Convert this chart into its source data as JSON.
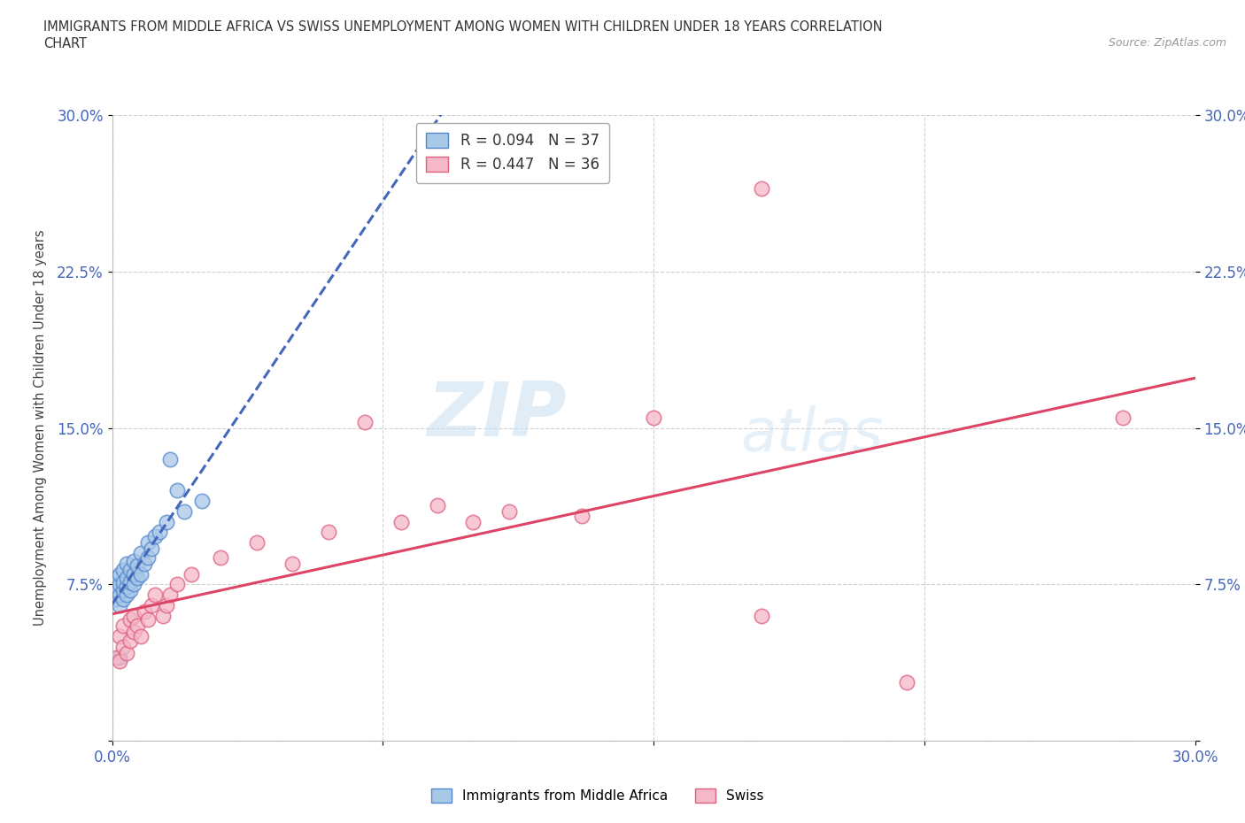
{
  "title": "IMMIGRANTS FROM MIDDLE AFRICA VS SWISS UNEMPLOYMENT AMONG WOMEN WITH CHILDREN UNDER 18 YEARS CORRELATION\nCHART",
  "source": "Source: ZipAtlas.com",
  "ylabel": "Unemployment Among Women with Children Under 18 years",
  "xlim": [
    0.0,
    0.3
  ],
  "ylim": [
    0.0,
    0.3
  ],
  "xticks": [
    0.0,
    0.075,
    0.15,
    0.225,
    0.3
  ],
  "yticks": [
    0.0,
    0.075,
    0.15,
    0.225,
    0.3
  ],
  "xticklabels": [
    "0.0%",
    "",
    "",
    "",
    "30.0%"
  ],
  "yticklabels": [
    "",
    "7.5%",
    "15.0%",
    "22.5%",
    "30.0%"
  ],
  "grid_color": "#cccccc",
  "background_color": "#ffffff",
  "watermark_zip": "ZIP",
  "watermark_atlas": "atlas",
  "blue_R": 0.094,
  "blue_N": 37,
  "pink_R": 0.447,
  "pink_N": 36,
  "blue_fill": "#a8c8e8",
  "pink_fill": "#f4b8c8",
  "blue_edge": "#5588cc",
  "pink_edge": "#e06080",
  "blue_line_color": "#4466bb",
  "pink_line_color": "#dd4466",
  "blue_scatter_x": [
    0.001,
    0.001,
    0.001,
    0.002,
    0.002,
    0.002,
    0.002,
    0.003,
    0.003,
    0.003,
    0.003,
    0.004,
    0.004,
    0.004,
    0.004,
    0.005,
    0.005,
    0.005,
    0.006,
    0.006,
    0.006,
    0.007,
    0.007,
    0.008,
    0.008,
    0.009,
    0.01,
    0.01,
    0.011,
    0.012,
    0.013,
    0.015,
    0.016,
    0.018,
    0.02,
    0.025,
    0.002
  ],
  "blue_scatter_y": [
    0.068,
    0.072,
    0.078,
    0.065,
    0.07,
    0.075,
    0.08,
    0.068,
    0.072,
    0.076,
    0.082,
    0.07,
    0.074,
    0.078,
    0.085,
    0.072,
    0.076,
    0.082,
    0.075,
    0.08,
    0.086,
    0.078,
    0.084,
    0.08,
    0.09,
    0.085,
    0.088,
    0.095,
    0.092,
    0.098,
    0.1,
    0.105,
    0.135,
    0.12,
    0.11,
    0.115,
    0.04
  ],
  "pink_scatter_x": [
    0.001,
    0.002,
    0.002,
    0.003,
    0.003,
    0.004,
    0.005,
    0.005,
    0.006,
    0.006,
    0.007,
    0.008,
    0.009,
    0.01,
    0.011,
    0.012,
    0.014,
    0.015,
    0.016,
    0.018,
    0.022,
    0.03,
    0.04,
    0.05,
    0.06,
    0.07,
    0.08,
    0.09,
    0.1,
    0.11,
    0.13,
    0.15,
    0.18,
    0.18,
    0.22,
    0.28
  ],
  "pink_scatter_y": [
    0.04,
    0.038,
    0.05,
    0.045,
    0.055,
    0.042,
    0.048,
    0.058,
    0.052,
    0.06,
    0.055,
    0.05,
    0.062,
    0.058,
    0.065,
    0.07,
    0.06,
    0.065,
    0.07,
    0.075,
    0.08,
    0.088,
    0.095,
    0.085,
    0.1,
    0.153,
    0.105,
    0.113,
    0.105,
    0.11,
    0.108,
    0.155,
    0.265,
    0.06,
    0.028,
    0.155
  ]
}
